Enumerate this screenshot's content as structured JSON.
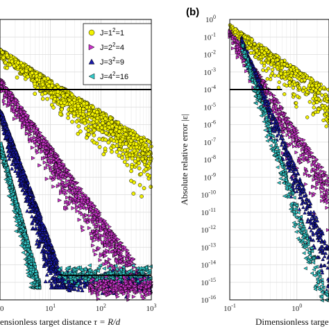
{
  "chart_data": [
    {
      "type": "scatter",
      "panel_label": "",
      "title": "",
      "xlabel": "ensionless target distance",
      "xlabel_math": "τ = R/d",
      "ylabel": "",
      "xscale": "log",
      "yscale": "log",
      "xlim": [
        1,
        1000
      ],
      "ylim": [
        1e-16,
        1
      ],
      "x_tick_labels": [
        "0",
        "10",
        "10",
        "10"
      ],
      "x_tick_exponents": [
        "",
        "1",
        "2",
        "3"
      ],
      "threshold": 0.0001,
      "grid": true,
      "legend": {
        "placement": "top-right",
        "entries": [
          {
            "label": "J=1",
            "sup": "2",
            "tail": "=1",
            "marker": "circle",
            "color": "#f2f200"
          },
          {
            "label": "J=2",
            "sup": "2",
            "tail": "=4",
            "marker": "triangle-right",
            "color": "#cc33cc"
          },
          {
            "label": "J=3",
            "sup": "2",
            "tail": "=9",
            "marker": "triangle-up",
            "color": "#1a1aa6"
          },
          {
            "label": "J=4",
            "sup": "2",
            "tail": "=16",
            "marker": "triangle-left",
            "color": "#33cccc"
          }
        ]
      },
      "series": [
        {
          "name": "J=1^2=1",
          "marker": "circle",
          "color": "#f2f200",
          "x": [
            1,
            1000
          ],
          "y": [
            0.02,
            1e-07
          ]
        },
        {
          "name": "J=2^2=4",
          "marker": "triangle-right",
          "color": "#cc33cc",
          "x": [
            1,
            1000
          ],
          "y": [
            0.0005,
            1e-15
          ]
        },
        {
          "name": "J=3^2=9",
          "marker": "triangle-up",
          "color": "#1a1aa6",
          "x": [
            1,
            20
          ],
          "y": [
            1e-05,
            1e-15
          ]
        },
        {
          "name": "J=4^2=16",
          "marker": "triangle-left",
          "color": "#33cccc",
          "x": [
            1,
            6
          ],
          "y": [
            1e-07,
            1e-15
          ]
        }
      ]
    },
    {
      "type": "scatter",
      "panel_label": "(b)",
      "title": "",
      "xlabel": "Dimensionless target",
      "ylabel": "Absolute relative error |ε|",
      "xscale": "log",
      "yscale": "log",
      "xlim": [
        0.1,
        3
      ],
      "ylim": [
        1e-16,
        1
      ],
      "x_tick_labels": [
        "10",
        "10"
      ],
      "x_tick_exponents": [
        "-1",
        "0"
      ],
      "y_tick_exponents": [
        "0",
        "-1",
        "-2",
        "-3",
        "-4",
        "-5",
        "-6",
        "-7",
        "-8",
        "-9",
        "-10",
        "-11",
        "-12",
        "-13",
        "-14",
        "-15",
        "-16"
      ],
      "threshold": 0.0001,
      "grid": true,
      "series": [
        {
          "name": "J=1^2=1",
          "marker": "circle",
          "color": "#f2f200",
          "x": [
            0.1,
            3
          ],
          "y": [
            0.5,
            0.0001
          ]
        },
        {
          "name": "J=2^2=4",
          "marker": "triangle-right",
          "color": "#cc33cc",
          "x": [
            0.1,
            3
          ],
          "y": [
            0.3,
            1e-09
          ]
        },
        {
          "name": "J=3^2=9",
          "marker": "triangle-up",
          "color": "#1a1aa6",
          "x": [
            0.15,
            3
          ],
          "y": [
            0.1,
            1e-13
          ]
        },
        {
          "name": "J=4^2=16",
          "marker": "triangle-left",
          "color": "#33cccc",
          "x": [
            0.15,
            3
          ],
          "y": [
            0.05,
            1e-16
          ]
        }
      ]
    }
  ]
}
